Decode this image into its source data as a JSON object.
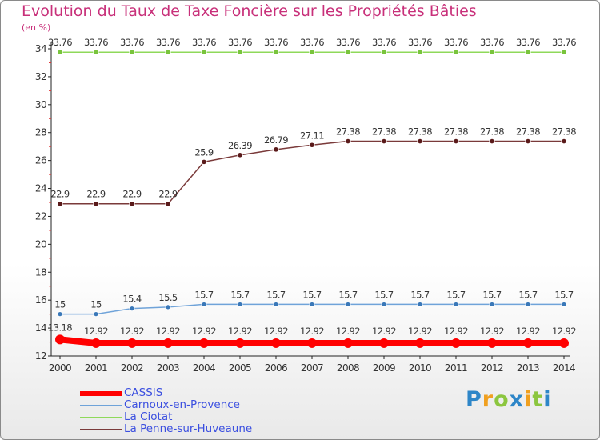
{
  "chart_data": {
    "type": "line",
    "title": "Evolution du Taux de Taxe Foncière sur les Propriétés Bâties",
    "unit_label": "(en %)",
    "x": [
      "2000",
      "2001",
      "2002",
      "2003",
      "2004",
      "2005",
      "2006",
      "2007",
      "2008",
      "2009",
      "2010",
      "2011",
      "2012",
      "2013",
      "2014"
    ],
    "ylim": [
      12,
      34
    ],
    "yticks": [
      "12",
      "14",
      "16",
      "18",
      "20",
      "22",
      "24",
      "26",
      "28",
      "30",
      "32",
      "34"
    ],
    "grid": false,
    "series": [
      {
        "name": "CASSIS",
        "color": "#ff0000",
        "values": [
          13.18,
          12.92,
          12.92,
          12.92,
          12.92,
          12.92,
          12.92,
          12.92,
          12.92,
          12.92,
          12.92,
          12.92,
          12.92,
          12.92,
          12.92
        ],
        "labels": [
          "13.18",
          "12.92",
          "12.92",
          "12.92",
          "12.92",
          "12.92",
          "12.92",
          "12.92",
          "12.92",
          "12.92",
          "12.92",
          "12.92",
          "12.92",
          "12.92",
          "12.92"
        ]
      },
      {
        "name": "Carnoux-en-Provence",
        "color": "#6fa3d9",
        "values": [
          15,
          15,
          15.4,
          15.5,
          15.7,
          15.7,
          15.7,
          15.7,
          15.7,
          15.7,
          15.7,
          15.7,
          15.7,
          15.7,
          15.7
        ],
        "labels": [
          "15",
          "15",
          "15.4",
          "15.5",
          "15.7",
          "15.7",
          "15.7",
          "15.7",
          "15.7",
          "15.7",
          "15.7",
          "15.7",
          "15.7",
          "15.7",
          "15.7"
        ]
      },
      {
        "name": "La Ciotat",
        "color": "#8fd95a",
        "values": [
          33.76,
          33.76,
          33.76,
          33.76,
          33.76,
          33.76,
          33.76,
          33.76,
          33.76,
          33.76,
          33.76,
          33.76,
          33.76,
          33.76,
          33.76
        ],
        "labels": [
          "33.76",
          "33.76",
          "33.76",
          "33.76",
          "33.76",
          "33.76",
          "33.76",
          "33.76",
          "33.76",
          "33.76",
          "33.76",
          "33.76",
          "33.76",
          "33.76",
          "33.76"
        ]
      },
      {
        "name": "La Penne-sur-Huveaune",
        "color": "#7a3a3a",
        "values": [
          22.9,
          22.9,
          22.9,
          22.9,
          25.9,
          26.39,
          26.79,
          27.11,
          27.38,
          27.38,
          27.38,
          27.38,
          27.38,
          27.38,
          27.38
        ],
        "labels": [
          "22.9",
          "22.9",
          "22.9",
          "22.9",
          "25.9",
          "26.39",
          "26.79",
          "27.11",
          "27.38",
          "27.38",
          "27.38",
          "27.38",
          "27.38",
          "27.38",
          "27.38"
        ]
      }
    ]
  },
  "brand": {
    "letters": [
      "P",
      "r",
      "o",
      "x",
      "i",
      "t",
      "i"
    ],
    "colors": [
      "#2e86c8",
      "#f0a020",
      "#8cc63f",
      "#2e86c8",
      "#f0a020",
      "#8cc63f",
      "#2e86c8"
    ]
  }
}
